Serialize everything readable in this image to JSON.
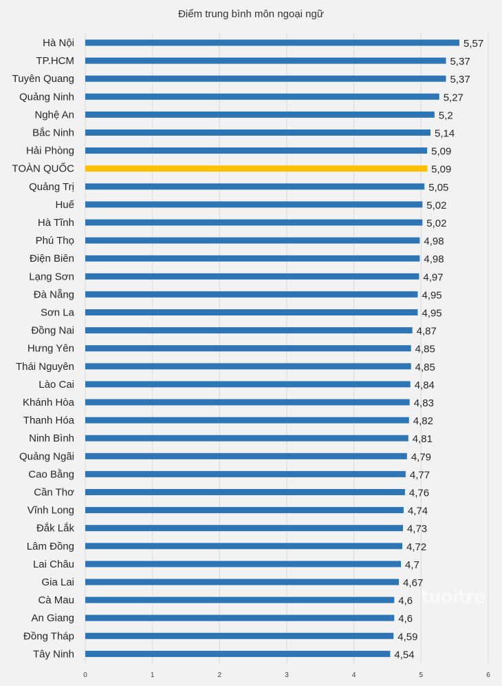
{
  "chart_data": {
    "type": "bar",
    "orientation": "horizontal",
    "title": "Điểm trung bình môn ngoại ngữ",
    "categories": [
      "Hà Nội",
      "TP.HCM",
      "Tuyên Quang",
      "Quảng Ninh",
      "Nghệ An",
      "Bắc Ninh",
      "Hải Phòng",
      "TOÀN QUỐC",
      "Quảng Trị",
      "Huế",
      "Hà Tĩnh",
      "Phú Thọ",
      "Điện Biên",
      "Lạng Sơn",
      "Đà Nẵng",
      "Sơn La",
      "Đồng Nai",
      "Hưng Yên",
      "Thái Nguyên",
      "Lào Cai",
      "Khánh Hòa",
      "Thanh Hóa",
      "Ninh Bình",
      "Quảng Ngãi",
      "Cao Bằng",
      "Cần Thơ",
      "Vĩnh Long",
      "Đắk Lắk",
      "Lâm Đồng",
      "Lai Châu",
      "Gia Lai",
      "Cà Mau",
      "An Giang",
      "Đồng Tháp",
      "Tây Ninh"
    ],
    "values": [
      5.57,
      5.37,
      5.37,
      5.27,
      5.2,
      5.14,
      5.09,
      5.09,
      5.05,
      5.02,
      5.02,
      4.98,
      4.98,
      4.97,
      4.95,
      4.95,
      4.87,
      4.85,
      4.85,
      4.84,
      4.83,
      4.82,
      4.81,
      4.79,
      4.77,
      4.76,
      4.74,
      4.73,
      4.72,
      4.7,
      4.67,
      4.6,
      4.6,
      4.59,
      4.54
    ],
    "value_labels": [
      "5,57",
      "5,37",
      "5,37",
      "5,27",
      "5,2",
      "5,14",
      "5,09",
      "5,09",
      "5,05",
      "5,02",
      "5,02",
      "4,98",
      "4,98",
      "4,97",
      "4,95",
      "4,95",
      "4,87",
      "4,85",
      "4,85",
      "4,84",
      "4,83",
      "4,82",
      "4,81",
      "4,79",
      "4,77",
      "4,76",
      "4,74",
      "4,73",
      "4,72",
      "4,7",
      "4,67",
      "4,6",
      "4,6",
      "4,59",
      "4,54"
    ],
    "highlight_category": "TOÀN QUỐC",
    "xlim": [
      0,
      6
    ],
    "xticks": [
      "0",
      "1",
      "2",
      "3",
      "4",
      "5",
      "6"
    ],
    "grid": "vertical",
    "colors": {
      "bar": "#2e75b6",
      "highlight": "#ffc000",
      "grid": "#d9d9d9",
      "background": "#f2f2f2"
    }
  },
  "watermark": {
    "text": "tuoitre"
  }
}
